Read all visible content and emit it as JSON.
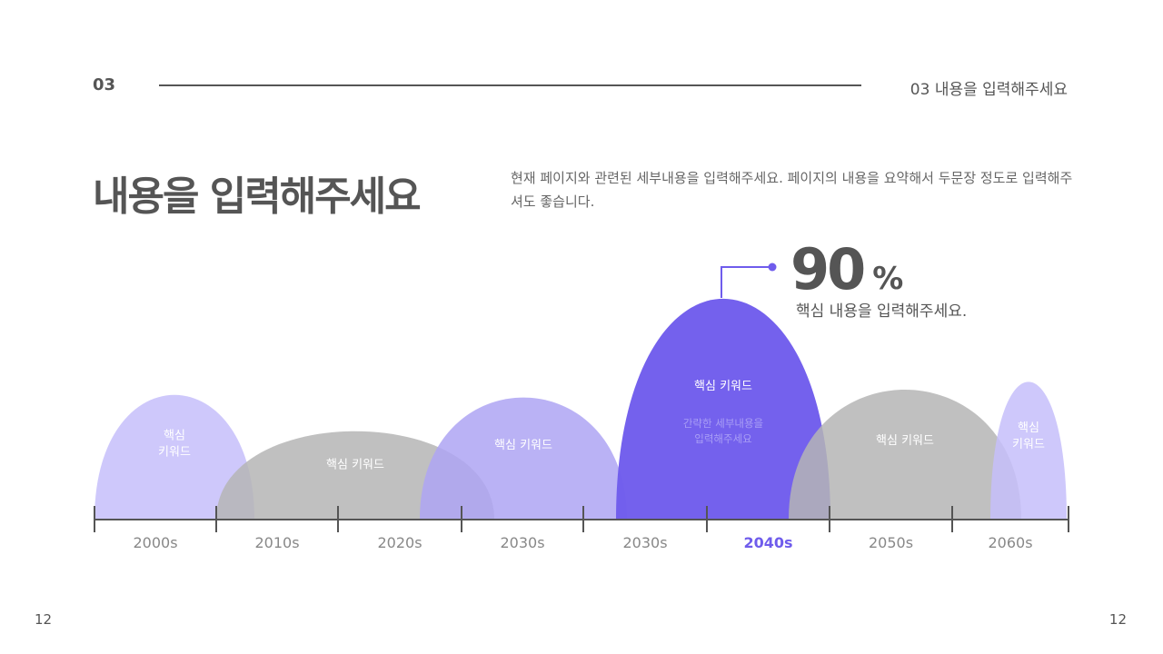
{
  "header": {
    "section_number": "03",
    "section_title": "03 내용을 입력해주세요"
  },
  "title": "내용을 입력해주세요",
  "description": "현재 페이지와 관련된 세부내용을 입력해주세요. 페이지의 내용을 요약해서 두문장 정도로 입력해주셔도 좋습니다.",
  "highlight": {
    "value": "90",
    "unit": "%",
    "caption": "핵심 내용을 입력해주세요."
  },
  "domes": [
    {
      "label": "핵심\n키워드",
      "color": "#c5befa",
      "height": 0.48
    },
    {
      "label": "핵심 키워드",
      "color": "#b5b5b5",
      "height": 0.34
    },
    {
      "label": "핵심 키워드",
      "color": "#aea4f3",
      "height": 0.47
    },
    {
      "label": "핵심 키워드",
      "detail": "간략한 세부내용을\n입력해주세요",
      "color": "#6f5cec",
      "height": 0.85
    },
    {
      "label": "핵심 키워드",
      "color": "#b5b5b5",
      "height": 0.5
    },
    {
      "label": "핵심\n키워드",
      "color": "#c5befa",
      "height": 0.53
    }
  ],
  "timeline": [
    "2000s",
    "2010s",
    "2020s",
    "2030s",
    "2030s",
    "2040s",
    "2050s",
    "2060s"
  ],
  "active_period": "2040s",
  "colors": {
    "accent": "#6f5cec",
    "axis": "#555555",
    "label": "#888888"
  },
  "page_left": "12",
  "page_right": "12"
}
